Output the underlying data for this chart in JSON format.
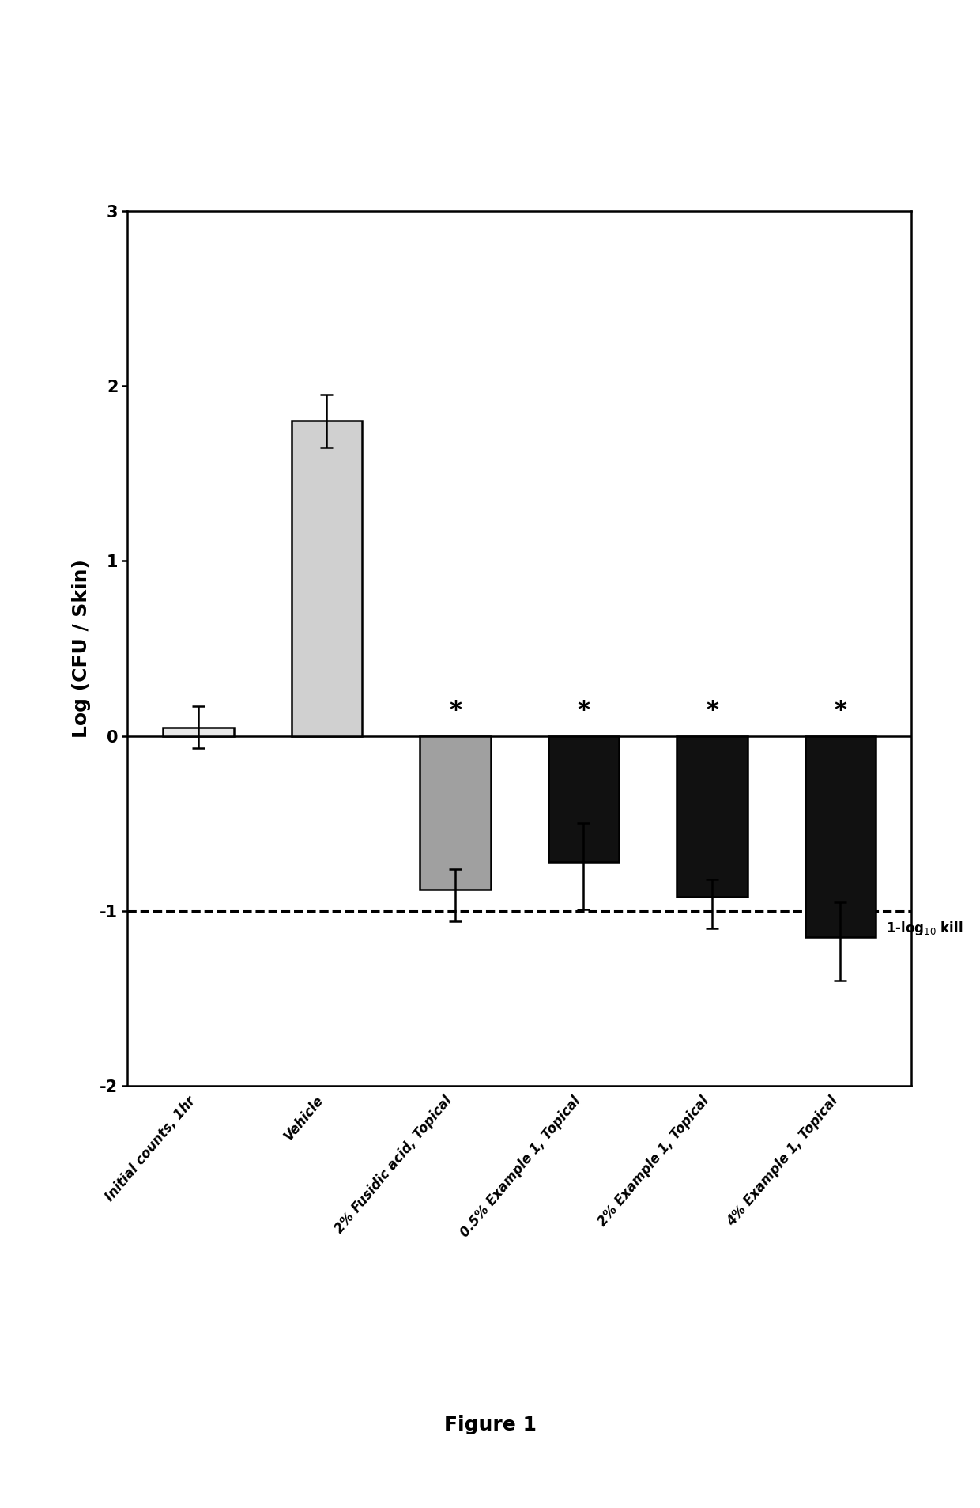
{
  "categories": [
    "Initial counts, 1hr",
    "Vehicle",
    "2% Fusidic acid, Topical",
    "0.5% Example 1, Topical",
    "2% Example 1, Topical",
    "4% Example 1, Topical"
  ],
  "values": [
    0.05,
    1.8,
    -0.88,
    -0.72,
    -0.92,
    -1.15
  ],
  "errors_up": [
    0.12,
    0.15,
    0.12,
    0.22,
    0.1,
    0.2
  ],
  "errors_down": [
    0.12,
    0.15,
    0.18,
    0.27,
    0.18,
    0.25
  ],
  "bar_colors": [
    "#e8e8e8",
    "#d0d0d0",
    "#a0a0a0",
    "#111111",
    "#111111",
    "#111111"
  ],
  "bar_edgecolors": [
    "#000000",
    "#000000",
    "#000000",
    "#000000",
    "#000000",
    "#000000"
  ],
  "significance": [
    false,
    false,
    true,
    true,
    true,
    true
  ],
  "ylabel": "Log (CFU / Skin)",
  "ylim": [
    -2,
    3
  ],
  "yticks": [
    -2,
    -1,
    0,
    1,
    2,
    3
  ],
  "dashed_line_y": -1,
  "figure_label": "Figure 1",
  "background_color": "#ffffff",
  "bar_width": 0.55,
  "axis_fontsize": 18,
  "tick_fontsize": 15,
  "label_fontsize": 12
}
